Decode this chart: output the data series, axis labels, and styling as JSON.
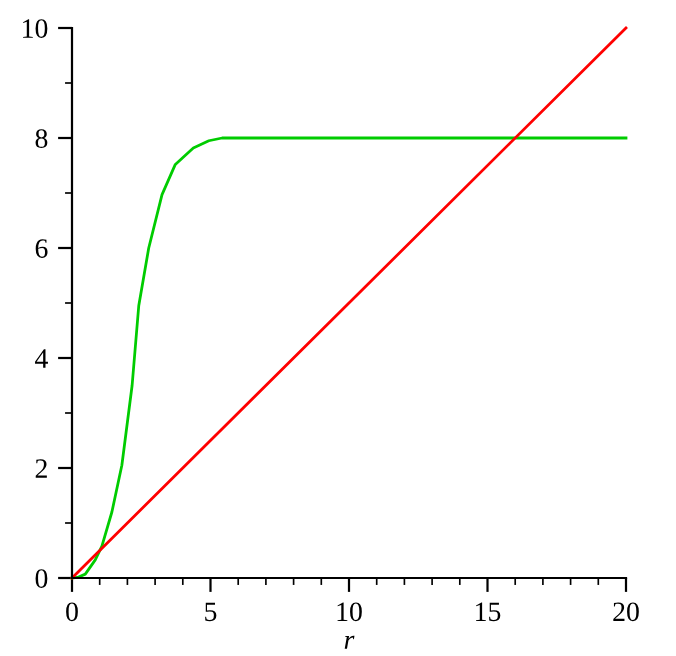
{
  "chart_data": {
    "type": "line",
    "xlabel": "r",
    "xlim": [
      0,
      20
    ],
    "ylim": [
      0,
      10
    ],
    "xticks": [
      0,
      5,
      10,
      15,
      20
    ],
    "yticks": [
      0,
      2,
      4,
      6,
      8,
      10
    ],
    "grid": false,
    "legend": false,
    "marker": "none",
    "line_style": "solid",
    "series": [
      {
        "color": "#00cc00",
        "x": [
          0,
          0.2,
          0.48,
          0.84,
          1.08,
          1.44,
          1.8,
          2.17,
          2.41,
          2.77,
          3.25,
          3.73,
          4.38,
          4.94,
          5.42,
          20
        ],
        "values": [
          0,
          0.01,
          0.07,
          0.33,
          0.58,
          1.2,
          2.05,
          3.5,
          4.95,
          6.0,
          6.97,
          7.52,
          7.82,
          7.95,
          8.0,
          8.0
        ]
      },
      {
        "color": "#ff0000",
        "x": [
          0,
          20
        ],
        "values": [
          0,
          10
        ]
      }
    ]
  }
}
